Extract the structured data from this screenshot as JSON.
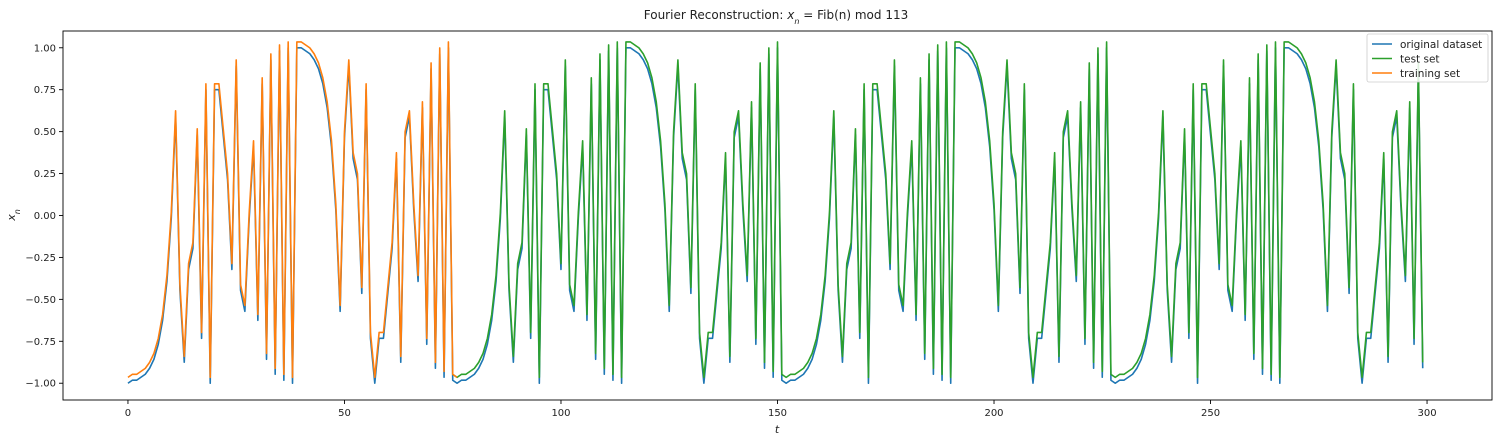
{
  "chart_data": {
    "type": "line",
    "title": "Fourier Reconstruction: x_n = Fib(n) mod 113",
    "xlabel": "t",
    "ylabel": "x_n",
    "xlim": [
      -15,
      315
    ],
    "ylim": [
      -1.1,
      1.1
    ],
    "xticks": [
      0,
      50,
      100,
      150,
      200,
      250,
      300
    ],
    "yticks": [
      -1.0,
      -0.75,
      -0.5,
      -0.25,
      0.0,
      0.25,
      0.5,
      0.75,
      1.0
    ],
    "ytick_labels": [
      "−1.00",
      "−0.75",
      "−0.50",
      "−0.25",
      "0.00",
      "0.25",
      "0.50",
      "0.75",
      "1.00"
    ],
    "legend_position": "top-right",
    "modulus": 113,
    "period": 76,
    "length": 300,
    "train_end": 76,
    "series": [
      {
        "name": "original dataset",
        "color": "#1f77b4",
        "role": "original",
        "range": [
          0,
          299
        ],
        "offset": 0
      },
      {
        "name": "test set",
        "color": "#2ca02c",
        "role": "reconstruction",
        "range": [
          75,
          299
        ],
        "offset": 0.035
      },
      {
        "name": "training set",
        "color": "#ff7f0e",
        "role": "reconstruction",
        "range": [
          0,
          76
        ],
        "offset": 0.035
      }
    ]
  }
}
